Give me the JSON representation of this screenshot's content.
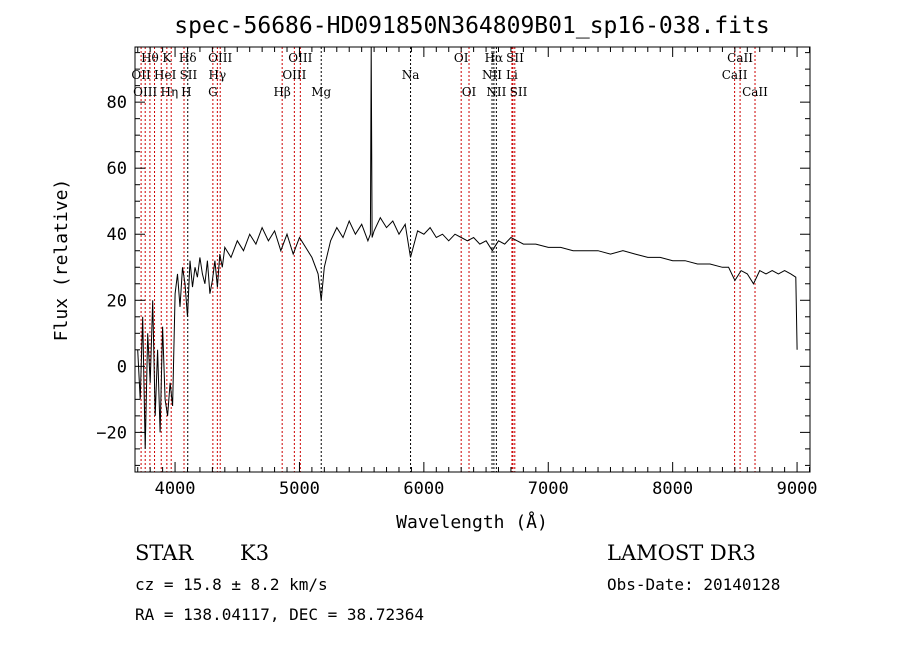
{
  "chart_data": {
    "type": "line",
    "title": "spec-56686-HD091850N364809B01_sp16-038.fits",
    "xlabel": "Wavelength (Å)",
    "ylabel": "Flux (relative)",
    "xlim": [
      3678,
      9104
    ],
    "ylim": [
      -32,
      96.7
    ],
    "xticks": [
      4000,
      5000,
      6000,
      7000,
      8000,
      9000
    ],
    "xtick_labels": [
      "4000",
      "5000",
      "6000",
      "7000",
      "8000",
      "9000"
    ],
    "yticks": [
      -20,
      0,
      20,
      40,
      60,
      80
    ],
    "ytick_labels": [
      "−20",
      "0",
      "20",
      "40",
      "60",
      "80"
    ],
    "grid": false,
    "series": [
      {
        "name": "spectrum",
        "x": [
          3700,
          3720,
          3740,
          3760,
          3780,
          3800,
          3820,
          3840,
          3860,
          3880,
          3900,
          3920,
          3940,
          3960,
          3980,
          4000,
          4020,
          4040,
          4060,
          4080,
          4100,
          4120,
          4140,
          4160,
          4180,
          4200,
          4220,
          4240,
          4260,
          4280,
          4300,
          4320,
          4340,
          4360,
          4380,
          4400,
          4450,
          4500,
          4550,
          4600,
          4650,
          4700,
          4750,
          4800,
          4850,
          4900,
          4950,
          5000,
          5050,
          5100,
          5150,
          5175,
          5200,
          5250,
          5300,
          5350,
          5400,
          5450,
          5500,
          5550,
          5570,
          5577,
          5584,
          5600,
          5650,
          5700,
          5750,
          5800,
          5850,
          5893,
          5950,
          6000,
          6050,
          6100,
          6150,
          6200,
          6250,
          6300,
          6350,
          6400,
          6450,
          6500,
          6550,
          6600,
          6650,
          6700,
          6750,
          6800,
          6900,
          7000,
          7100,
          7200,
          7300,
          7400,
          7500,
          7600,
          7700,
          7800,
          7900,
          8000,
          8100,
          8200,
          8300,
          8400,
          8450,
          8500,
          8550,
          8600,
          8650,
          8700,
          8750,
          8800,
          8850,
          8900,
          8950,
          8990,
          9000
        ],
        "y": [
          5,
          -10,
          15,
          -25,
          10,
          -5,
          20,
          -15,
          5,
          -20,
          12,
          -10,
          -15,
          -5,
          -12,
          22,
          28,
          18,
          30,
          25,
          15,
          32,
          24,
          30,
          27,
          33,
          28,
          25,
          32,
          22,
          26,
          32,
          24,
          34,
          30,
          36,
          33,
          38,
          35,
          40,
          37,
          42,
          38,
          41,
          35,
          40,
          34,
          39,
          36,
          33,
          28,
          20,
          30,
          38,
          42,
          39,
          44,
          40,
          43,
          38,
          40,
          97,
          39,
          41,
          45,
          42,
          44,
          40,
          43,
          33,
          41,
          40,
          42,
          39,
          40,
          38,
          40,
          39,
          38,
          39,
          37,
          38,
          35,
          38,
          37,
          39,
          38,
          37,
          37,
          36,
          36,
          35,
          35,
          35,
          34,
          35,
          34,
          33,
          33,
          32,
          32,
          31,
          31,
          30,
          30,
          26,
          29,
          28,
          25,
          29,
          28,
          29,
          28,
          29,
          28,
          27,
          5
        ],
        "color": "#000000"
      }
    ],
    "annotations": [
      {
        "label": "Hθ",
        "wavelength": 3798,
        "row": 1,
        "color": "#cc0000"
      },
      {
        "label": "K",
        "wavelength": 3934,
        "row": 1,
        "color": "#cc0000"
      },
      {
        "label": "Hδ",
        "wavelength": 4102,
        "row": 1,
        "color": "#000000"
      },
      {
        "label": "OIII",
        "wavelength": 4363,
        "row": 1,
        "color": "#cc0000"
      },
      {
        "label": "OIII",
        "wavelength": 5007,
        "row": 1,
        "color": "#cc0000"
      },
      {
        "label": "OI",
        "wavelength": 6300,
        "row": 1,
        "color": "#cc0000"
      },
      {
        "label": "Hα",
        "wavelength": 6563,
        "row": 1,
        "color": "#000000"
      },
      {
        "label": "SII",
        "wavelength": 6716,
        "row": 1,
        "color": "#cc0000"
      },
      {
        "label": "CaII",
        "wavelength": 8542,
        "row": 1,
        "color": "#cc0000"
      },
      {
        "label": "OII",
        "wavelength": 3727,
        "row": 2,
        "color": "#cc0000"
      },
      {
        "label": "HeI",
        "wavelength": 3889,
        "row": 2,
        "color": "#cc0000"
      },
      {
        "label": "SII",
        "wavelength": 4072,
        "row": 2,
        "color": "#cc0000"
      },
      {
        "label": "Hγ",
        "wavelength": 4340,
        "row": 2,
        "color": "#cc0000"
      },
      {
        "label": "OIII",
        "wavelength": 4959,
        "row": 2,
        "color": "#cc0000"
      },
      {
        "label": "Na",
        "wavelength": 5893,
        "row": 2,
        "color": "#000000"
      },
      {
        "label": "NII",
        "wavelength": 6548,
        "row": 2,
        "color": "#000000"
      },
      {
        "label": "Li",
        "wavelength": 6708,
        "row": 2,
        "color": "#cc0000"
      },
      {
        "label": "CaII",
        "wavelength": 8498,
        "row": 2,
        "color": "#cc0000"
      },
      {
        "label": "OIII",
        "wavelength": 3760,
        "row": 3,
        "color": "#cc0000"
      },
      {
        "label": "Hη",
        "wavelength": 3835,
        "row": 3,
        "color": "#cc0000"
      },
      {
        "label": "H",
        "wavelength": 3969,
        "row": 3,
        "color": "#cc0000"
      },
      {
        "label": "G",
        "wavelength": 4304,
        "row": 3,
        "color": "#cc0000"
      },
      {
        "label": "Hβ",
        "wavelength": 4861,
        "row": 3,
        "color": "#cc0000"
      },
      {
        "label": "Mg",
        "wavelength": 5175,
        "row": 3,
        "color": "#000000"
      },
      {
        "label": "OI",
        "wavelength": 6363,
        "row": 3,
        "color": "#cc0000"
      },
      {
        "label": "NII",
        "wavelength": 6583,
        "row": 3,
        "color": "#000000"
      },
      {
        "label": "SII",
        "wavelength": 6731,
        "row": 3,
        "color": "#cc0000"
      },
      {
        "label": "CaII",
        "wavelength": 8662,
        "row": 3,
        "color": "#cc0000"
      }
    ]
  },
  "info": {
    "class": "STAR",
    "subclass": "K3",
    "cz": "cz = 15.8 ± 8.2 km/s",
    "coords": "RA = 138.04117, DEC =  38.72364",
    "survey": "LAMOST DR3",
    "obs_date": "Obs-Date: 20140128"
  }
}
